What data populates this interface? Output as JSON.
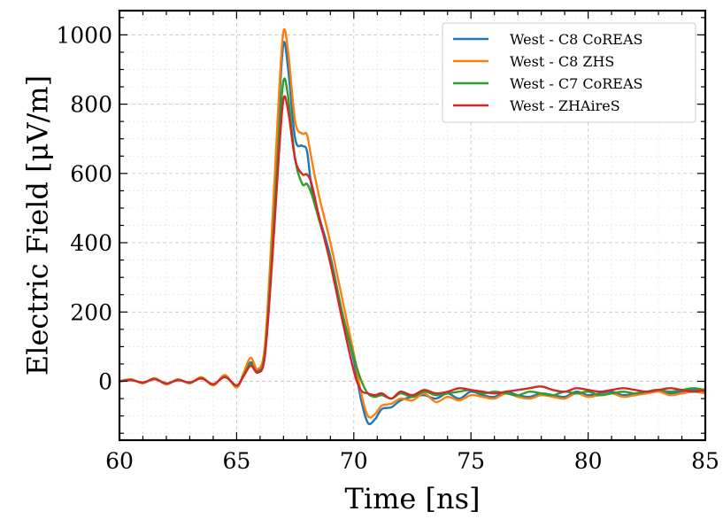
{
  "chart_data": {
    "type": "line",
    "title": "",
    "xlabel": "Time [ns]",
    "ylabel": "Electric Field [μV/m]",
    "xlim": [
      60,
      85
    ],
    "ylim": [
      -170,
      1070
    ],
    "grid": true,
    "legend_placement": "top-right",
    "x_ticks": [
      60,
      65,
      70,
      75,
      80,
      85
    ],
    "y_ticks": [
      0,
      200,
      400,
      600,
      800,
      1000
    ],
    "series": [
      {
        "name": "West - C8 CoREAS",
        "color": "#1f77b4",
        "x": [
          60,
          60.5,
          61,
          61.5,
          62,
          62.5,
          63,
          63.5,
          64,
          64.5,
          65,
          65.3,
          65.6,
          65.9,
          66.2,
          66.5,
          66.8,
          67.0,
          67.2,
          67.5,
          67.8,
          68.0,
          68.2,
          68.5,
          69,
          69.5,
          70,
          70.3,
          70.6,
          70.9,
          71.2,
          71.6,
          72,
          72.5,
          73,
          73.5,
          74,
          74.5,
          75,
          75.5,
          76,
          76.5,
          77,
          77.5,
          78,
          78.5,
          79,
          79.5,
          80,
          80.5,
          81,
          81.5,
          82,
          82.5,
          83,
          83.5,
          84,
          84.5,
          85
        ],
        "y": [
          0,
          5,
          -5,
          8,
          -8,
          5,
          -5,
          10,
          -10,
          15,
          -15,
          20,
          55,
          30,
          90,
          400,
          780,
          975,
          900,
          700,
          680,
          665,
          560,
          480,
          360,
          200,
          60,
          -50,
          -120,
          -110,
          -80,
          -75,
          -55,
          -45,
          -40,
          -50,
          -35,
          -50,
          -30,
          -40,
          -45,
          -30,
          -40,
          -45,
          -35,
          -40,
          -45,
          -30,
          -40,
          -35,
          -30,
          -40,
          -35,
          -30,
          -25,
          -35,
          -30,
          -25,
          -30
        ]
      },
      {
        "name": "West - C8 ZHS",
        "color": "#ff7f0e",
        "x": [
          60,
          60.5,
          61,
          61.5,
          62,
          62.5,
          63,
          63.5,
          64,
          64.5,
          65,
          65.3,
          65.6,
          65.9,
          66.2,
          66.5,
          66.8,
          67.0,
          67.2,
          67.5,
          67.8,
          68.0,
          68.2,
          68.5,
          69,
          69.5,
          70,
          70.3,
          70.6,
          70.9,
          71.2,
          71.6,
          72,
          72.5,
          73,
          73.5,
          74,
          74.5,
          75,
          75.5,
          76,
          76.5,
          77,
          77.5,
          78,
          78.5,
          79,
          79.5,
          80,
          80.5,
          81,
          81.5,
          82,
          82.5,
          83,
          83.5,
          84,
          84.5,
          85
        ],
        "y": [
          0,
          6,
          -6,
          9,
          -9,
          6,
          -6,
          12,
          -12,
          18,
          -18,
          25,
          68,
          35,
          100,
          430,
          820,
          1010,
          950,
          750,
          715,
          712,
          640,
          540,
          400,
          240,
          80,
          -30,
          -100,
          -95,
          -70,
          -65,
          -50,
          -55,
          -35,
          -60,
          -45,
          -55,
          -40,
          -45,
          -50,
          -35,
          -45,
          -50,
          -40,
          -45,
          -50,
          -35,
          -45,
          -40,
          -35,
          -45,
          -40,
          -35,
          -30,
          -40,
          -35,
          -30,
          -35
        ]
      },
      {
        "name": "West - C7 CoREAS",
        "color": "#2ca02c",
        "x": [
          60,
          60.5,
          61,
          61.5,
          62,
          62.5,
          63,
          63.5,
          64,
          64.5,
          65,
          65.3,
          65.6,
          65.9,
          66.2,
          66.5,
          66.8,
          67.0,
          67.2,
          67.5,
          67.8,
          68.0,
          68.2,
          68.5,
          69,
          69.5,
          70,
          70.3,
          70.6,
          70.9,
          71.2,
          71.6,
          72,
          72.5,
          73,
          73.5,
          74,
          74.5,
          75,
          75.5,
          76,
          76.5,
          77,
          77.5,
          78,
          78.5,
          79,
          79.5,
          80,
          80.5,
          81,
          81.5,
          82,
          82.5,
          83,
          83.5,
          84,
          84.5,
          85
        ],
        "y": [
          0,
          4,
          -4,
          7,
          -7,
          4,
          -4,
          9,
          -9,
          13,
          -13,
          18,
          50,
          25,
          80,
          360,
          700,
          868,
          820,
          640,
          570,
          570,
          540,
          470,
          350,
          200,
          70,
          5,
          -35,
          -45,
          -40,
          -50,
          -35,
          -45,
          -30,
          -40,
          -35,
          -30,
          -25,
          -35,
          -30,
          -35,
          -40,
          -30,
          -35,
          -40,
          -30,
          -35,
          -30,
          -40,
          -35,
          -30,
          -35,
          -30,
          -25,
          -30,
          -25,
          -20,
          -25
        ]
      },
      {
        "name": "West - ZHAireS",
        "color": "#d62728",
        "x": [
          60,
          60.5,
          61,
          61.5,
          62,
          62.5,
          63,
          63.5,
          64,
          64.5,
          65,
          65.3,
          65.6,
          65.9,
          66.2,
          66.5,
          66.8,
          67.0,
          67.2,
          67.5,
          67.8,
          68.0,
          68.2,
          68.5,
          69,
          69.5,
          70,
          70.3,
          70.6,
          70.9,
          71.2,
          71.6,
          72,
          72.5,
          73,
          73.5,
          74,
          74.5,
          75,
          75.5,
          76,
          76.5,
          77,
          77.5,
          78,
          78.5,
          79,
          79.5,
          80,
          80.5,
          81,
          81.5,
          82,
          82.5,
          83,
          83.5,
          84,
          84.5,
          85
        ],
        "y": [
          0,
          3,
          -3,
          6,
          -6,
          3,
          -3,
          8,
          -8,
          12,
          -12,
          15,
          45,
          25,
          70,
          330,
          650,
          815,
          780,
          640,
          598,
          597,
          570,
          480,
          340,
          180,
          30,
          -25,
          -35,
          -40,
          -35,
          -50,
          -30,
          -40,
          -25,
          -35,
          -30,
          -20,
          -25,
          -30,
          -35,
          -30,
          -25,
          -20,
          -15,
          -25,
          -30,
          -20,
          -25,
          -30,
          -25,
          -20,
          -25,
          -30,
          -25,
          -20,
          -25,
          -30,
          -25
        ]
      }
    ]
  }
}
